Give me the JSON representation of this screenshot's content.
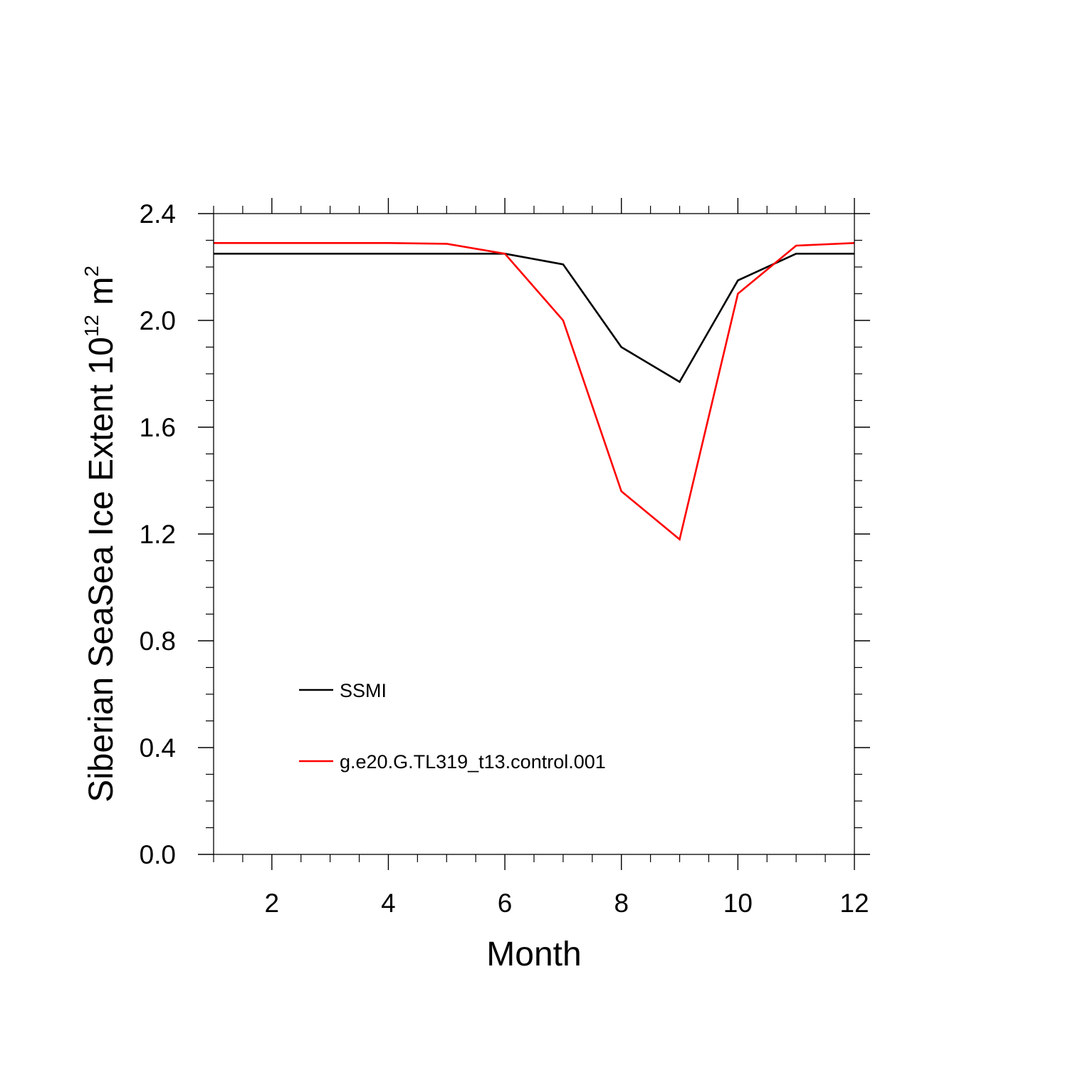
{
  "chart_data": {
    "type": "line",
    "title": "",
    "xlabel": "Month",
    "ylabel": {
      "prefix": "Siberian SeaSea Ice Extent 10",
      "exponent": "12",
      "unit": " m",
      "unit_exponent": "2"
    },
    "xlim": [
      1,
      12
    ],
    "ylim": [
      0.0,
      2.4
    ],
    "x_ticks": [
      2,
      4,
      6,
      8,
      10,
      12
    ],
    "x_tick_labels": [
      "2",
      "4",
      "6",
      "8",
      "10",
      "12"
    ],
    "y_ticks": [
      0.0,
      0.4,
      0.8,
      1.2,
      1.6,
      2.0,
      2.4
    ],
    "y_tick_labels": [
      "0.0",
      "0.4",
      "0.8",
      "1.2",
      "1.6",
      "2.0",
      "2.4"
    ],
    "x_minor_step": 0.5,
    "y_minor_step": 0.1,
    "grid": false,
    "legend_position": "bottom-left",
    "x": [
      1,
      2,
      3,
      4,
      5,
      6,
      7,
      8,
      9,
      10,
      11,
      12
    ],
    "series": [
      {
        "name": "SSMI",
        "color": "#000000",
        "values": [
          2.25,
          2.25,
          2.25,
          2.25,
          2.25,
          2.25,
          2.21,
          1.9,
          1.77,
          2.15,
          2.25,
          2.25
        ]
      },
      {
        "name": "g.e20.G.TL319_t13.control.001",
        "color": "#ff0000",
        "values": [
          2.29,
          2.29,
          2.29,
          2.29,
          2.287,
          2.25,
          2.0,
          1.36,
          1.18,
          2.1,
          2.28,
          2.29
        ]
      }
    ]
  }
}
